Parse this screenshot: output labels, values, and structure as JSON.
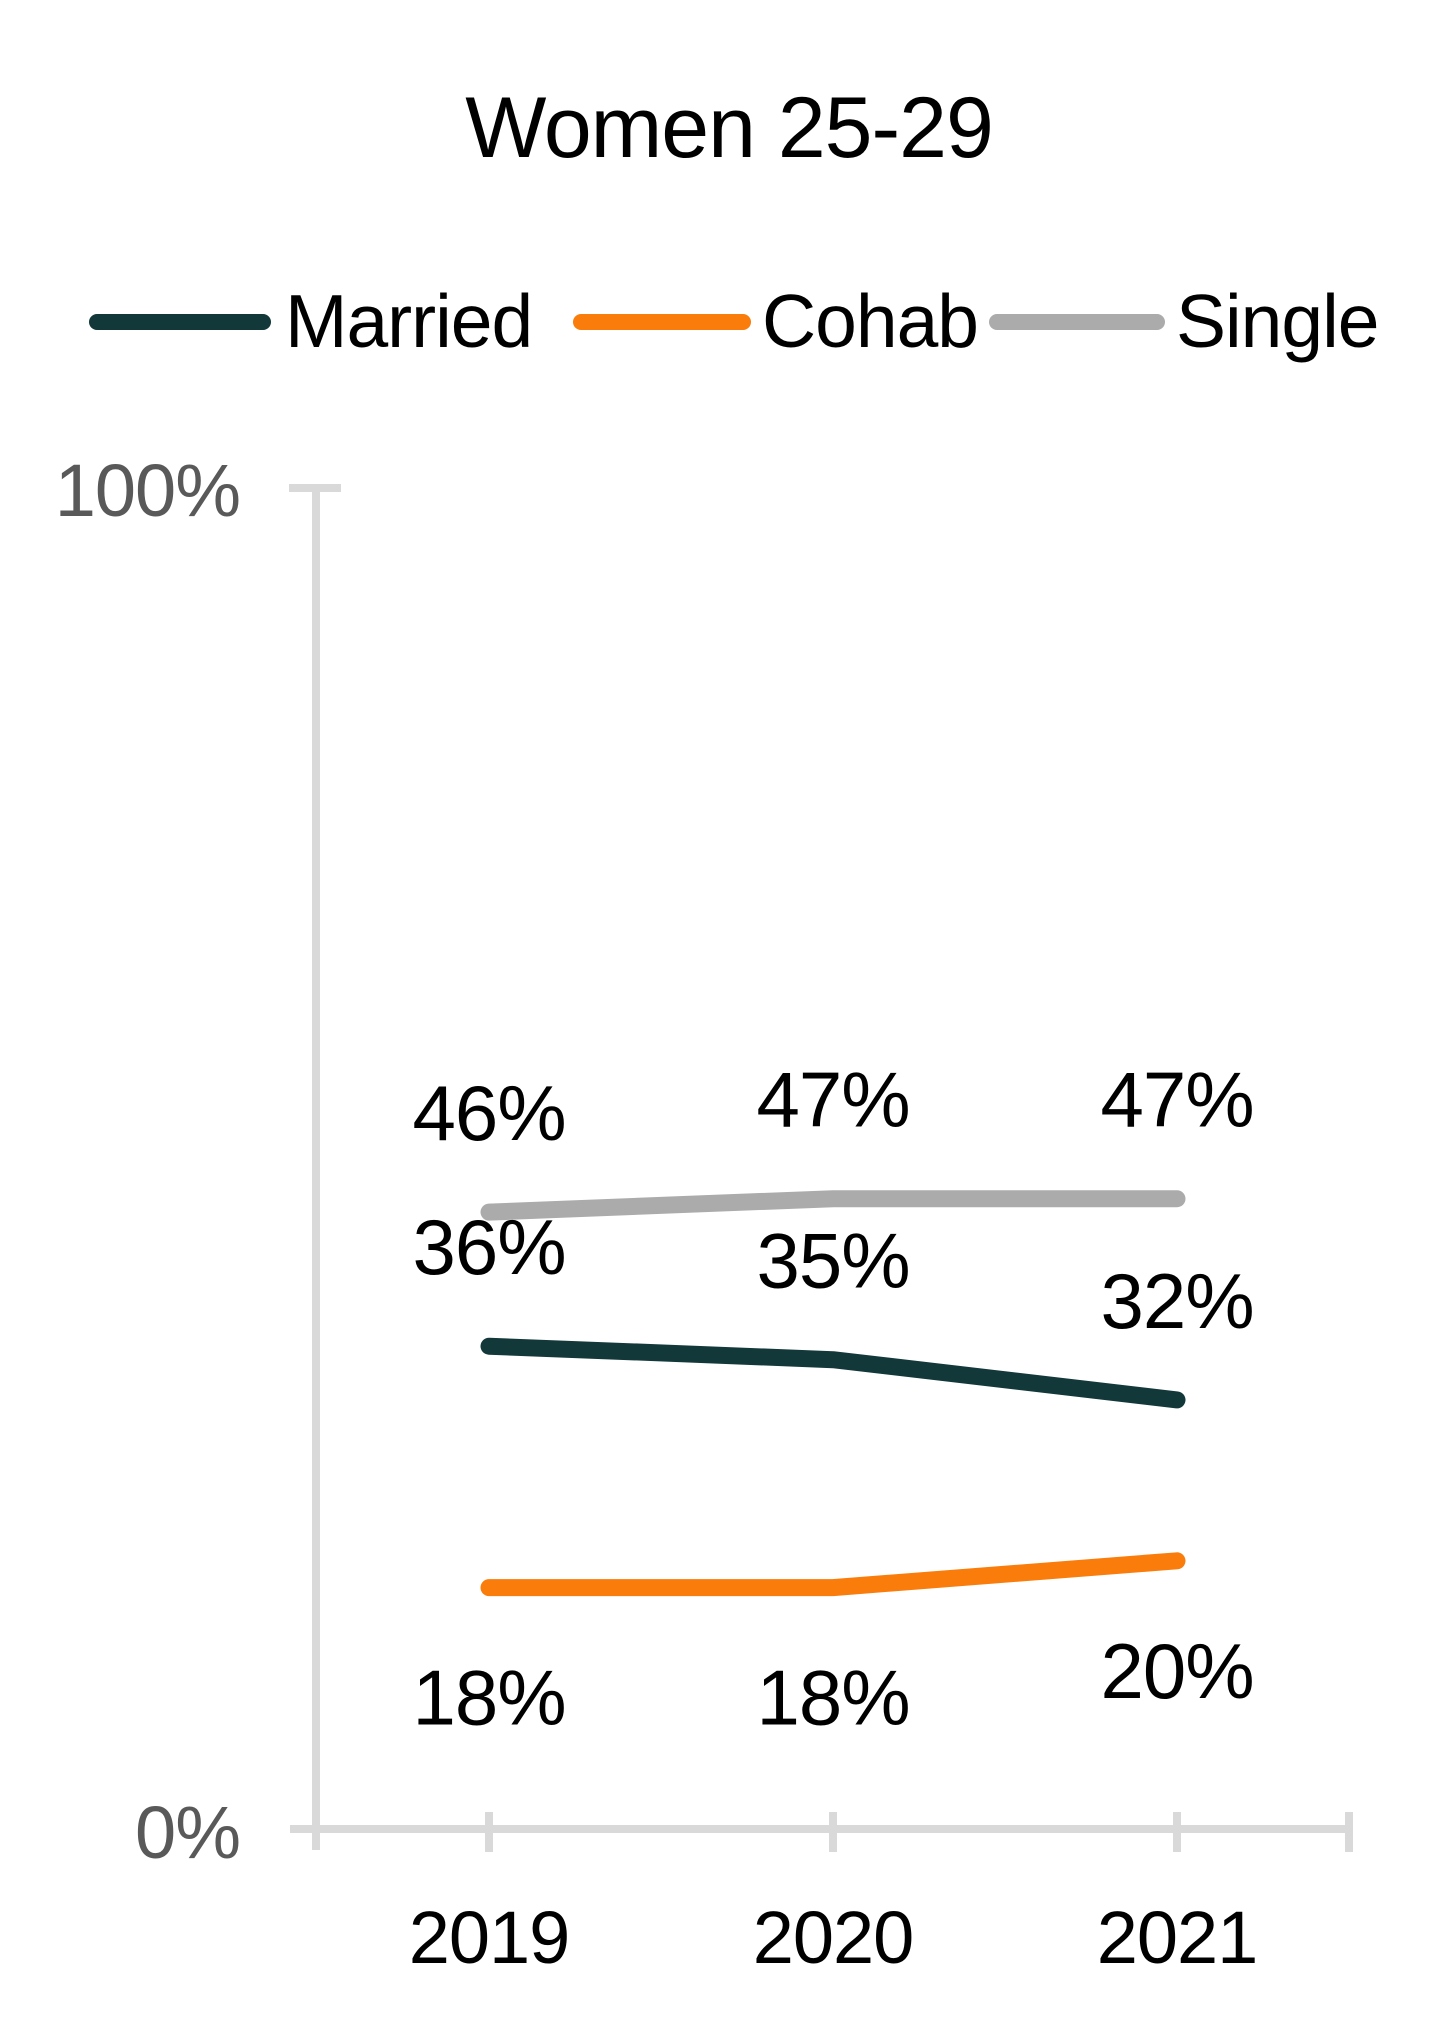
{
  "title": "Women 25-29",
  "colors": {
    "married": "#123839",
    "cohab": "#fa7c0a",
    "single": "#ababab",
    "axis": "#d9d9d9",
    "tick_label": "#595959",
    "data_label": "#000000"
  },
  "legend": [
    {
      "key": "married",
      "label": "Married"
    },
    {
      "key": "cohab",
      "label": "Cohab"
    },
    {
      "key": "single",
      "label": "Single"
    }
  ],
  "chart_data": {
    "type": "line",
    "title": "Women 25-29",
    "x_labels": [
      "2019",
      "2020",
      "2021"
    ],
    "series": [
      {
        "name": "Married",
        "color_key": "married",
        "values": [
          36,
          35,
          32
        ],
        "labels": [
          "36%",
          "35%",
          "32%"
        ],
        "label_position": "above"
      },
      {
        "name": "Cohab",
        "color_key": "cohab",
        "values": [
          18,
          18,
          20
        ],
        "labels": [
          "18%",
          "18%",
          "20%"
        ],
        "label_position": "below"
      },
      {
        "name": "Single",
        "color_key": "single",
        "values": [
          46,
          47,
          47
        ],
        "labels": [
          "46%",
          "47%",
          "47%"
        ],
        "label_position": "above"
      }
    ],
    "ylim": [
      0,
      100
    ],
    "y_tick_labels": [
      "0%",
      "100%"
    ],
    "xlabel": "",
    "ylabel": "",
    "grid": false,
    "legend_position": "top"
  }
}
